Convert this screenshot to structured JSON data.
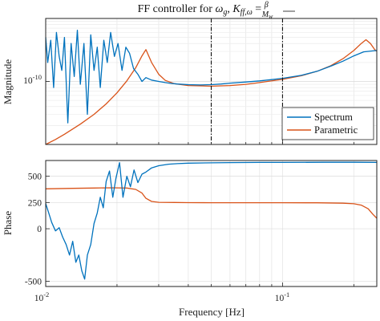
{
  "chart_data": [
    {
      "type": "line",
      "title": "FF controller for ωg, Kff,ωg = β / Mw",
      "title_parts": {
        "prefix": "FF controller for ",
        "omega": "ω",
        "sub_g": "g",
        "sep": ", ",
        "K": "K",
        "sub_ff_omega": "ff,ω",
        "eq": " = ",
        "num": "β",
        "den_M": "M",
        "den_sub": "w"
      },
      "xlabel": "",
      "ylabel": "Magnitude",
      "xscale": "log",
      "yscale": "log",
      "xlim": [
        0.01,
        0.25
      ],
      "ylim": [
        1e-11,
        1e-09
      ],
      "ytick_labels": [
        {
          "base": "10",
          "exp": "-10",
          "value": 1e-10
        }
      ],
      "grid": true,
      "legend_position": "bottom-right",
      "vlines": [
        0.05,
        0.1
      ],
      "series": [
        {
          "name": "Spectrum",
          "color": "#0072BD",
          "x": [
            0.01,
            0.0102,
            0.0105,
            0.0108,
            0.0111,
            0.0114,
            0.0117,
            0.012,
            0.0124,
            0.0128,
            0.0132,
            0.0136,
            0.014,
            0.0145,
            0.015,
            0.0155,
            0.016,
            0.0165,
            0.017,
            0.0176,
            0.0182,
            0.0188,
            0.0195,
            0.0202,
            0.021,
            0.0218,
            0.0226,
            0.0235,
            0.0245,
            0.0255,
            0.0265,
            0.028,
            0.03,
            0.032,
            0.034,
            0.036,
            0.04,
            0.045,
            0.05,
            0.055,
            0.06,
            0.07,
            0.08,
            0.09,
            0.1,
            0.12,
            0.14,
            0.16,
            0.18,
            0.2,
            0.22,
            0.25
          ],
          "values": [
            5e-10,
            2e-10,
            4.5e-10,
            8e-11,
            6e-10,
            2.5e-10,
            1.5e-10,
            5e-10,
            2.2e-11,
            4e-10,
            1.2e-10,
            6.5e-10,
            9e-11,
            4e-10,
            3e-11,
            5.5e-10,
            1.5e-10,
            3.5e-10,
            8e-11,
            4.5e-10,
            2e-10,
            6e-10,
            2.5e-10,
            4e-10,
            1.5e-10,
            3.5e-10,
            2.8e-10,
            1.6e-10,
            1.3e-10,
            1e-10,
            1.15e-10,
            1.05e-10,
            1e-10,
            9.6e-11,
            9.3e-11,
            9.1e-11,
            8.9e-11,
            8.8e-11,
            8.9e-11,
            9.1e-11,
            9.4e-11,
            9.8e-11,
            1.02e-10,
            1.07e-10,
            1.12e-10,
            1.25e-10,
            1.45e-10,
            1.75e-10,
            2.1e-10,
            2.55e-10,
            2.95e-10,
            3.1e-10
          ]
        },
        {
          "name": "Parametric",
          "color": "#D95319",
          "x": [
            0.01,
            0.011,
            0.012,
            0.014,
            0.016,
            0.018,
            0.02,
            0.022,
            0.024,
            0.0255,
            0.0265,
            0.028,
            0.03,
            0.032,
            0.035,
            0.04,
            0.05,
            0.06,
            0.07,
            0.08,
            0.1,
            0.12,
            0.14,
            0.16,
            0.18,
            0.2,
            0.215,
            0.225,
            0.235,
            0.245,
            0.25
          ],
          "values": [
            1e-11,
            1.2e-11,
            1.45e-11,
            2.1e-11,
            3e-11,
            4.4e-11,
            6.6e-11,
            1.02e-10,
            1.65e-10,
            2.55e-10,
            3.2e-10,
            2e-10,
            1.3e-10,
            1.04e-10,
            9.2e-11,
            8.6e-11,
            8.4e-11,
            8.6e-11,
            9e-11,
            9.6e-11,
            1.08e-10,
            1.23e-10,
            1.45e-10,
            1.78e-10,
            2.3e-10,
            3.1e-10,
            4e-10,
            4.6e-10,
            4e-10,
            3.2e-10,
            3e-10
          ]
        }
      ]
    },
    {
      "type": "line",
      "title": "",
      "xlabel": "Frequency [Hz]",
      "ylabel": "Phase",
      "xscale": "log",
      "xlim": [
        0.01,
        0.25
      ],
      "ylim": [
        -550,
        650
      ],
      "yticks": [
        -500,
        0,
        250,
        500
      ],
      "ytick_labels": [
        "-500",
        "0",
        "250",
        "500"
      ],
      "xtick_labels": [
        {
          "base": "10",
          "exp": "-2",
          "value": 0.01
        },
        {
          "base": "10",
          "exp": "-1",
          "value": 0.1
        }
      ],
      "grid": true,
      "series": [
        {
          "name": "Spectrum",
          "color": "#0072BD",
          "x": [
            0.01,
            0.0103,
            0.0106,
            0.011,
            0.0114,
            0.0118,
            0.0122,
            0.0126,
            0.013,
            0.0134,
            0.0138,
            0.0142,
            0.0146,
            0.015,
            0.0155,
            0.016,
            0.0165,
            0.017,
            0.0175,
            0.018,
            0.0186,
            0.0192,
            0.0198,
            0.0205,
            0.0212,
            0.022,
            0.0228,
            0.0236,
            0.0245,
            0.0255,
            0.0265,
            0.028,
            0.03,
            0.033,
            0.036,
            0.04,
            0.05,
            0.06,
            0.08,
            0.1,
            0.15,
            0.2,
            0.25
          ],
          "values": [
            240,
            150,
            60,
            -20,
            10,
            -80,
            -150,
            -250,
            -120,
            -320,
            -250,
            -400,
            -480,
            -250,
            -150,
            50,
            150,
            300,
            200,
            450,
            550,
            300,
            480,
            630,
            300,
            500,
            400,
            560,
            440,
            520,
            540,
            580,
            600,
            615,
            620,
            625,
            628,
            630,
            632,
            632,
            633,
            633,
            632
          ]
        },
        {
          "name": "Parametric",
          "color": "#D95319",
          "x": [
            0.01,
            0.013,
            0.016,
            0.019,
            0.022,
            0.024,
            0.0255,
            0.0265,
            0.028,
            0.03,
            0.035,
            0.04,
            0.05,
            0.07,
            0.1,
            0.14,
            0.18,
            0.2,
            0.215,
            0.23,
            0.24,
            0.25
          ],
          "values": [
            380,
            385,
            388,
            390,
            388,
            375,
            340,
            290,
            260,
            252,
            250,
            249,
            248,
            248,
            248,
            247,
            243,
            238,
            225,
            190,
            140,
            100
          ]
        }
      ]
    }
  ]
}
